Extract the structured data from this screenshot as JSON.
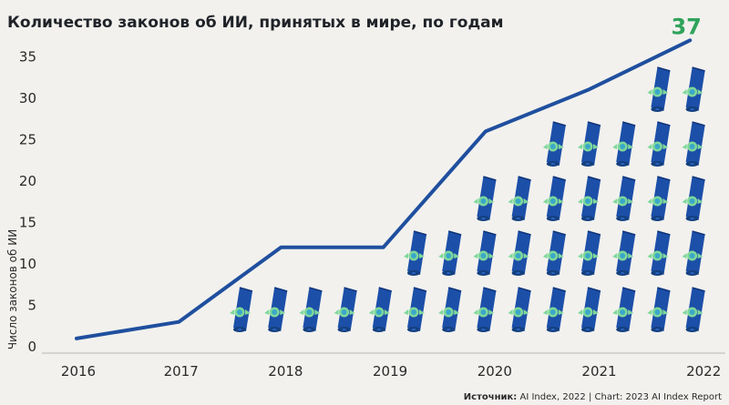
{
  "chart_data": {
    "type": "line",
    "title": "Количество законов об ИИ, принятых в мире, по годам",
    "ylabel": "Число законов об ИИ",
    "xlabel": "",
    "x": [
      2016,
      2017,
      2018,
      2019,
      2020,
      2021,
      2022
    ],
    "series": [
      {
        "values": [
          1,
          3,
          12,
          12,
          26,
          31,
          37
        ]
      }
    ],
    "ylim": [
      0,
      37
    ],
    "yticks": [
      0,
      5,
      10,
      15,
      20,
      25,
      30,
      35
    ],
    "final_value_label": "37",
    "grid": false,
    "line_color": "#1f4f9e",
    "label_color": "#2fa35b",
    "pictogram": {
      "icon": "rolled-scroll-with-rosette-icon",
      "counts_per_year": [
        0,
        0,
        6,
        6,
        11,
        11,
        13
      ],
      "scroll_color": "#1c4fa8",
      "rosette_color": "#7fd89a"
    }
  },
  "source": {
    "label": "Источник:",
    "text": " AI Index, 2022 | Chart: 2023 AI Index Report"
  }
}
